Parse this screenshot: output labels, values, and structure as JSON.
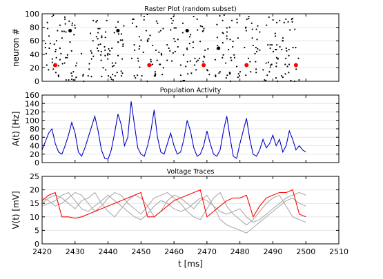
{
  "figure": {
    "xlabel": "t [ms]",
    "x_ticks": [
      2420,
      2430,
      2440,
      2450,
      2460,
      2470,
      2480,
      2490,
      2500,
      2510
    ],
    "xlim": [
      2420,
      2510
    ]
  },
  "colors": {
    "raster": "#000000",
    "highlight": "#ff0000",
    "population": "#0000cc",
    "trace_red": "#ff0000",
    "trace_gray": "#aaaaaa",
    "grid": "#e6e6e6"
  },
  "chart_data": [
    {
      "type": "scatter",
      "title": "Raster Plot (random subset)",
      "xlabel": "",
      "ylabel": "neuron #",
      "xlim": [
        2420,
        2510
      ],
      "ylim": [
        0,
        100
      ],
      "y_ticks": [
        0,
        20,
        40,
        60,
        80,
        100
      ],
      "grid": true,
      "column_times": [
        2421.5,
        2422.5,
        2423.5,
        2424.5,
        2425.5,
        2426.5,
        2427.5,
        2428.5,
        2429.5,
        2430.5,
        2432.5,
        2434.5,
        2435.5,
        2436.5,
        2437.5,
        2438.5,
        2439.5,
        2440.5,
        2441.5,
        2442.5,
        2443.5,
        2444.5,
        2447.5,
        2448.5,
        2449.5,
        2450.5,
        2451.5,
        2452.5,
        2453.5,
        2454.5,
        2455.5,
        2456.5,
        2458.5,
        2459.5,
        2460.5,
        2461.5,
        2462.5,
        2463.5,
        2464.5,
        2465.5,
        2466.5,
        2467.5,
        2468.5,
        2469.5,
        2470.5,
        2472.5,
        2473.5,
        2474.5,
        2475.5,
        2476.5,
        2477.5,
        2478.5,
        2479.5,
        2481.5,
        2482.5,
        2483.5,
        2484.5,
        2485.5,
        2487.5,
        2488.5,
        2489.5,
        2490.5,
        2491.5,
        2492.5,
        2493.5,
        2494.5,
        2495.5,
        2496.5,
        2497.5
      ],
      "highlighted_spikes": [
        {
          "t": 2424.0,
          "neuron": 24,
          "group": "red"
        },
        {
          "t": 2452.5,
          "neuron": 24,
          "group": "red"
        },
        {
          "t": 2469.0,
          "neuron": 24,
          "group": "red"
        },
        {
          "t": 2482.0,
          "neuron": 24,
          "group": "red"
        },
        {
          "t": 2497.0,
          "neuron": 24,
          "group": "red"
        },
        {
          "t": 2428.5,
          "neuron": 75,
          "group": "black"
        },
        {
          "t": 2443.0,
          "neuron": 75,
          "group": "black"
        },
        {
          "t": 2464.0,
          "neuron": 75,
          "group": "black"
        },
        {
          "t": 2473.5,
          "neuron": 49,
          "group": "black"
        }
      ]
    },
    {
      "type": "line",
      "title": "Population Activity",
      "xlabel": "",
      "ylabel": "A(t) [Hz]",
      "xlim": [
        2420,
        2510
      ],
      "ylim": [
        0,
        160
      ],
      "y_ticks": [
        0,
        20,
        40,
        60,
        80,
        100,
        120,
        140,
        160
      ],
      "grid": true,
      "x": [
        2420,
        2421,
        2422,
        2423,
        2424,
        2425,
        2426,
        2427,
        2428,
        2429,
        2430,
        2431,
        2432,
        2433,
        2434,
        2435,
        2436,
        2437,
        2438,
        2439,
        2440,
        2441,
        2442,
        2443,
        2444,
        2445,
        2446,
        2447,
        2448,
        2449,
        2450,
        2451,
        2452,
        2453,
        2454,
        2455,
        2456,
        2457,
        2458,
        2459,
        2460,
        2461,
        2462,
        2463,
        2464,
        2465,
        2466,
        2467,
        2468,
        2469,
        2470,
        2471,
        2472,
        2473,
        2474,
        2475,
        2476,
        2477,
        2478,
        2479,
        2480,
        2481,
        2482,
        2483,
        2484,
        2485,
        2486,
        2487,
        2488,
        2489,
        2490,
        2491,
        2492,
        2493,
        2494,
        2495,
        2496,
        2497,
        2498,
        2499,
        2500
      ],
      "values": [
        30,
        50,
        70,
        80,
        45,
        25,
        20,
        40,
        65,
        95,
        70,
        25,
        15,
        35,
        60,
        85,
        110,
        75,
        30,
        10,
        8,
        30,
        70,
        115,
        90,
        40,
        60,
        145,
        90,
        35,
        20,
        15,
        40,
        75,
        125,
        60,
        25,
        20,
        45,
        70,
        40,
        20,
        25,
        55,
        100,
        75,
        35,
        15,
        20,
        40,
        75,
        45,
        20,
        15,
        30,
        75,
        110,
        60,
        15,
        10,
        45,
        75,
        105,
        55,
        20,
        15,
        30,
        55,
        35,
        45,
        65,
        40,
        55,
        25,
        40,
        75,
        55,
        30,
        40,
        30,
        25
      ]
    },
    {
      "type": "line",
      "title": "Voltage Traces",
      "xlabel": "t [ms]",
      "ylabel": "V(t) [mV]",
      "xlim": [
        2420,
        2510
      ],
      "ylim": [
        0,
        25
      ],
      "y_ticks": [
        0,
        5,
        10,
        15,
        20,
        25
      ],
      "grid": true,
      "x": [
        2420,
        2422,
        2424,
        2426,
        2428,
        2430,
        2432,
        2434,
        2436,
        2438,
        2440,
        2442,
        2444,
        2446,
        2448,
        2450,
        2452,
        2454,
        2456,
        2458,
        2460,
        2462,
        2464,
        2466,
        2468,
        2470,
        2472,
        2474,
        2476,
        2478,
        2480,
        2482,
        2484,
        2486,
        2488,
        2490,
        2492,
        2494,
        2496,
        2498,
        2500
      ],
      "series": [
        {
          "color": "#ff0000",
          "values": [
            16,
            18,
            19,
            10,
            10,
            9.5,
            10,
            11,
            12,
            13,
            14,
            15,
            16,
            17,
            18,
            19,
            10,
            10,
            12,
            14,
            16,
            17,
            18,
            19,
            20,
            10,
            12,
            14,
            16,
            17,
            17,
            18,
            10,
            14,
            17,
            18,
            19,
            19,
            20,
            11,
            10
          ]
        },
        {
          "color": "#aaaaaa",
          "values": [
            15,
            17,
            18,
            17,
            15,
            13,
            16,
            17,
            19,
            15,
            12,
            10,
            13,
            16,
            18,
            17,
            14,
            10,
            12,
            16,
            18,
            17,
            15,
            13,
            16,
            18,
            14,
            9,
            7,
            6,
            5,
            4,
            6,
            8,
            10,
            12,
            14,
            16,
            17,
            15,
            14
          ]
        },
        {
          "color": "#aaaaaa",
          "values": [
            17,
            16,
            14,
            15,
            17,
            19,
            18,
            15,
            12,
            14,
            17,
            19,
            18,
            15,
            13,
            11,
            14,
            17,
            18,
            19,
            17,
            15,
            12,
            10,
            9,
            13,
            17,
            19,
            14,
            11,
            9,
            7,
            9,
            12,
            15,
            17,
            18,
            14,
            10,
            9,
            8
          ]
        },
        {
          "color": "#aaaaaa",
          "values": [
            14,
            15,
            16,
            18,
            19,
            16,
            13,
            12,
            14,
            16,
            18,
            16,
            14,
            12,
            10,
            9,
            11,
            14,
            16,
            15,
            13,
            12,
            13,
            15,
            17,
            16,
            14,
            12,
            11,
            12,
            13,
            10,
            8,
            9,
            11,
            13,
            15,
            17,
            18,
            19,
            18
          ]
        }
      ]
    }
  ]
}
